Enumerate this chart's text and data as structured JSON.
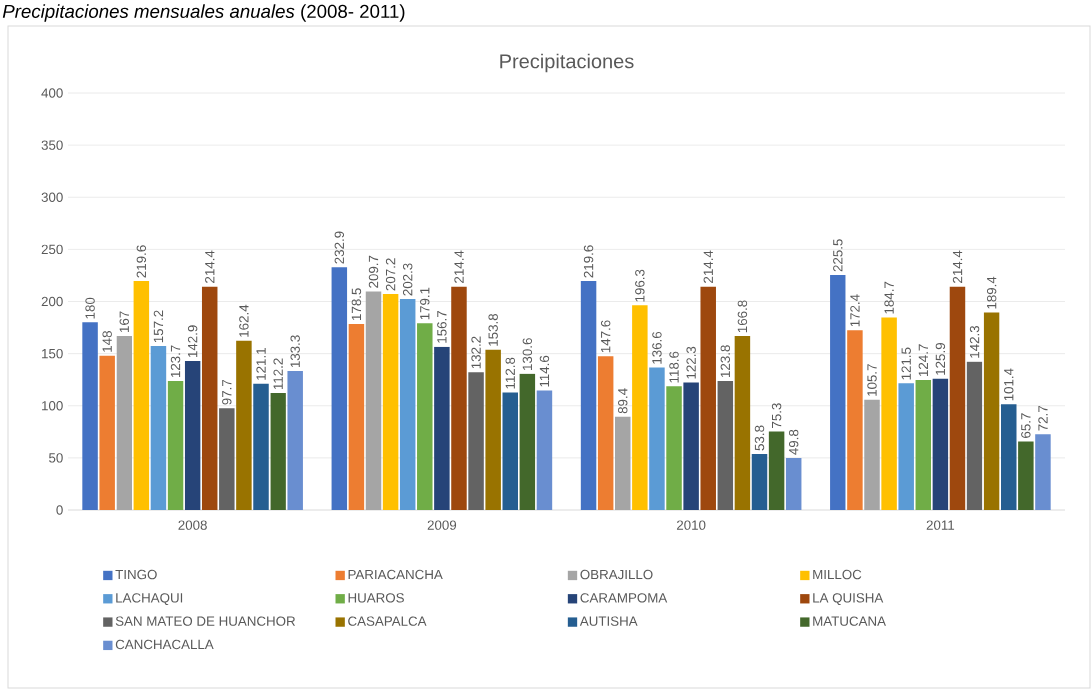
{
  "chart_data": {
    "type": "bar",
    "title": "Precipitaciones",
    "annotations": [
      "*Precipitaciones mensuales anuales* (2008- 2011)"
    ],
    "categories": [
      "2008",
      "2009",
      "2010",
      "2011"
    ],
    "series": [
      {
        "name": "TINGO",
        "color": "#4472c4",
        "values": [
          180,
          232.9,
          219.6,
          225.5
        ]
      },
      {
        "name": "PARIACANCHA",
        "color": "#ed7d31",
        "values": [
          148,
          178.5,
          147.6,
          172.4
        ]
      },
      {
        "name": "OBRAJILLO",
        "color": "#a5a5a5",
        "values": [
          167,
          209.7,
          89.4,
          105.7
        ]
      },
      {
        "name": "MILLOC",
        "color": "#ffc000",
        "values": [
          219.6,
          207.2,
          196.3,
          184.7
        ]
      },
      {
        "name": "LACHAQUI",
        "color": "#5b9bd5",
        "values": [
          157.2,
          202.3,
          136.6,
          121.5
        ]
      },
      {
        "name": "HUAROS",
        "color": "#70ad47",
        "values": [
          123.7,
          179.1,
          118.6,
          124.7
        ]
      },
      {
        "name": "CARAMPOMA",
        "color": "#264478",
        "values": [
          142.9,
          156.7,
          122.3,
          125.9
        ]
      },
      {
        "name": "LA QUISHA",
        "color": "#9e480e",
        "values": [
          214.4,
          214.4,
          214.4,
          214.4
        ]
      },
      {
        "name": "SAN MATEO DE HUANCHOR",
        "color": "#636363",
        "values": [
          97.7,
          132.2,
          123.8,
          142.3
        ]
      },
      {
        "name": "CASAPALCA",
        "color": "#997300",
        "values": [
          162.4,
          153.8,
          166.8,
          189.4
        ]
      },
      {
        "name": "AUTISHA",
        "color": "#255e91",
        "values": [
          121.1,
          112.8,
          53.8,
          101.4
        ]
      },
      {
        "name": "MATUCANA",
        "color": "#43682b",
        "values": [
          112.2,
          130.6,
          75.3,
          65.7
        ]
      },
      {
        "name": "CANCHACALLA",
        "color": "#698ed0",
        "values": [
          133.3,
          114.6,
          49.8,
          72.7
        ]
      }
    ],
    "ylim": [
      0,
      400
    ],
    "yticks": [
      0,
      50,
      100,
      150,
      200,
      250,
      300,
      350,
      400
    ],
    "grid": "y",
    "legend": "bottom",
    "data_labels": true
  }
}
